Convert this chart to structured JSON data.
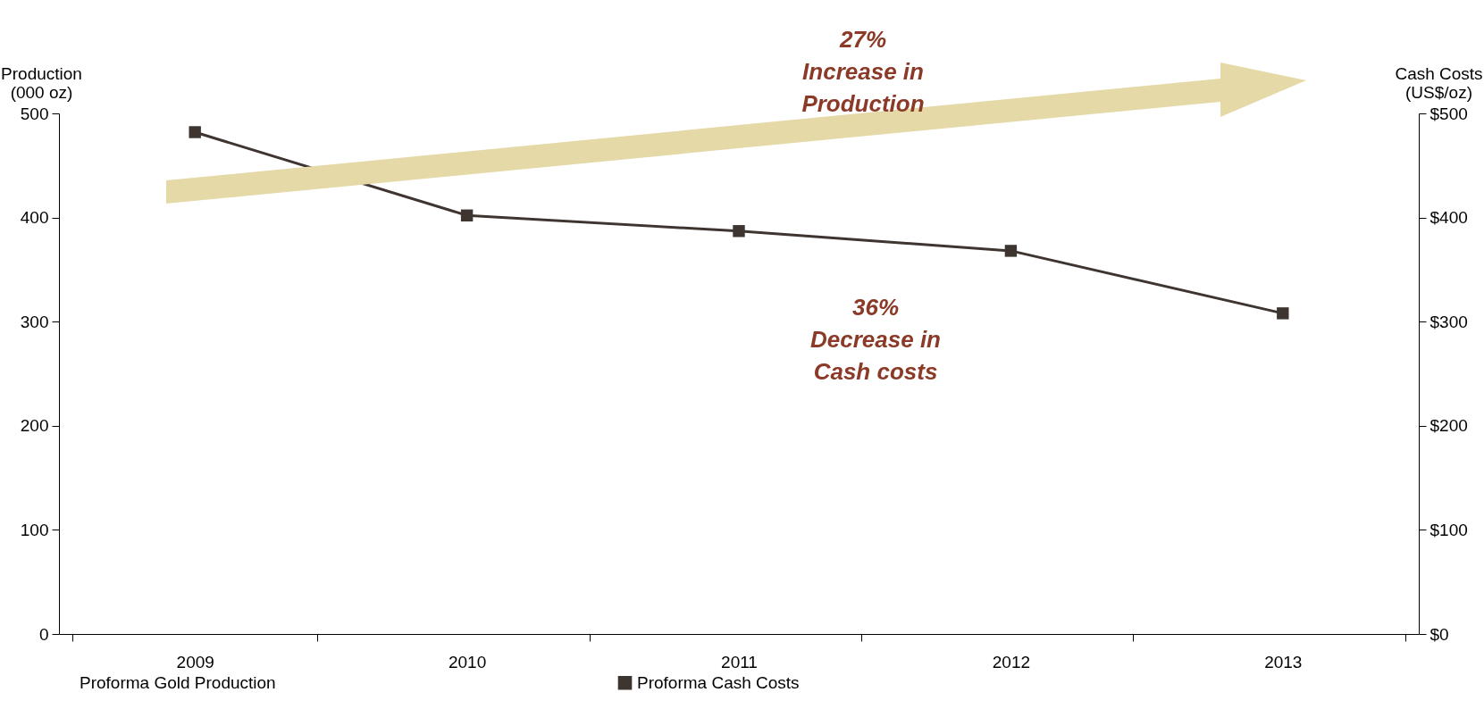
{
  "chart_data": {
    "type": "line",
    "ylabel": "Production\n(000 oz)",
    "y2label": "Cash Costs\n(US$/oz)",
    "categories": [
      "2009",
      "2010",
      "2011",
      "2012",
      "2013"
    ],
    "series": [
      {
        "name": "Proforma Gold Production",
        "type": "bar",
        "axis": "y",
        "values": [
          null,
          null,
          null,
          null,
          null
        ]
      },
      {
        "name": "Proforma Cash Costs",
        "axis": "y2",
        "color": "#3f3530",
        "values": [
          482,
          402,
          387,
          368,
          308
        ]
      }
    ],
    "ylim": [
      0,
      500
    ],
    "yticks": [
      0,
      100,
      200,
      300,
      400,
      500
    ],
    "y2lim": [
      0,
      500
    ],
    "y2ticks": [
      {
        "value": 0,
        "label": "$0"
      },
      {
        "value": 100,
        "label": "$100"
      },
      {
        "value": 200,
        "label": "$200"
      },
      {
        "value": 300,
        "label": "$300"
      },
      {
        "value": 400,
        "label": "$400"
      },
      {
        "value": 500,
        "label": "$500"
      }
    ],
    "marker": "square",
    "line_style": "solid",
    "grid": false,
    "legend": "bottom",
    "annotations": [
      "27%\nIncrease in\nProduction",
      "36%\nDecrease in\nCash costs"
    ]
  }
}
